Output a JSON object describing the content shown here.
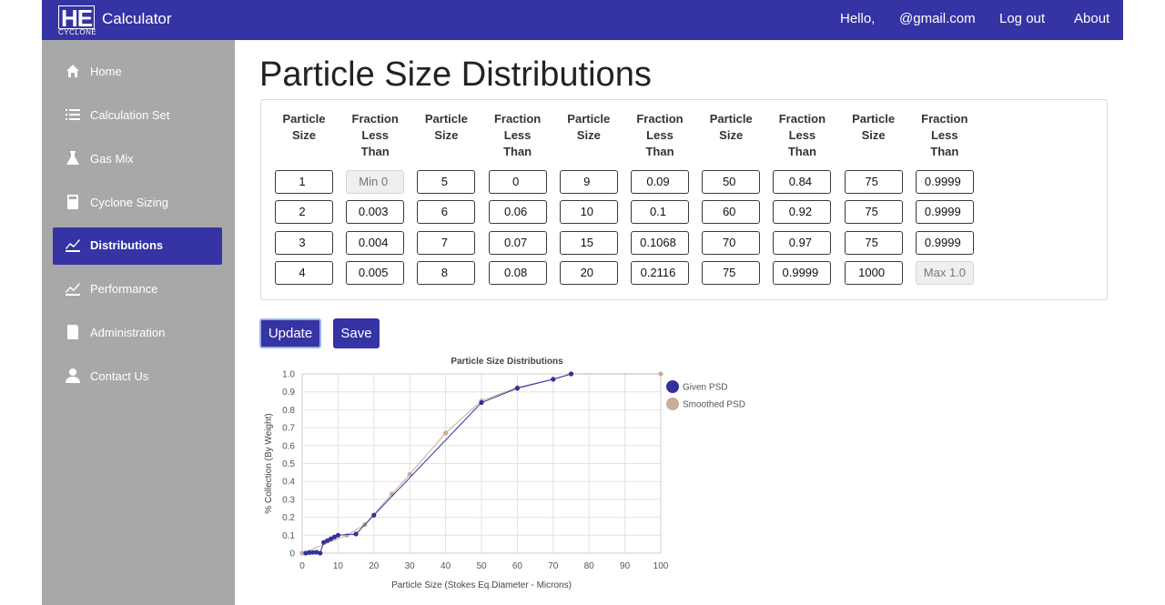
{
  "header": {
    "logo": "HE",
    "logo_sub": "CYCLONE",
    "app_name": "Calculator",
    "nav": [
      "Hello,",
      "@gmail.com",
      "Log out",
      "About"
    ]
  },
  "sidebar": {
    "items": [
      "Home",
      "Calculation Set",
      "Gas Mix",
      "Cyclone Sizing",
      "Distributions",
      "Performance",
      "Administration",
      "Contact Us"
    ],
    "active_index": 4
  },
  "page_title": "Particle Size Distributions",
  "table": {
    "headers": [
      "Particle Size",
      "Fraction Less Than",
      "Particle Size",
      "Fraction Less Than",
      "Particle Size",
      "Fraction Less Than",
      "Particle Size",
      "Fraction Less Than",
      "Particle Size",
      "Fraction Less Than"
    ],
    "rows": [
      [
        1,
        "Min 0",
        5,
        0,
        9,
        0.09,
        50,
        0.84,
        75,
        0.9999
      ],
      [
        2,
        0.003,
        6,
        0.06,
        10,
        0.1,
        60,
        0.92,
        75,
        0.9999
      ],
      [
        3,
        0.004,
        7,
        0.07,
        15,
        0.1068,
        70,
        0.97,
        75,
        0.9999
      ],
      [
        4,
        0.005,
        8,
        0.08,
        20,
        0.2116,
        75,
        0.9999,
        1000,
        "Max 1.0"
      ]
    ]
  },
  "buttons": [
    "Update",
    "Save"
  ],
  "chart_data": {
    "type": "line",
    "title": "Particle Size Distributions",
    "x_label": "Particle Size (Stokes Eq.Diameter - Microns)",
    "y_label": "% Collection (By Weight)",
    "xlim": [
      0,
      100
    ],
    "ylim": [
      0,
      1
    ],
    "xticks": [
      0,
      10,
      20,
      30,
      40,
      50,
      60,
      70,
      80,
      90,
      100
    ],
    "yticks": [
      0,
      0.1,
      0.2,
      0.3,
      0.4,
      0.5,
      0.6,
      0.7,
      0.8,
      0.9,
      {
        "value": 1,
        "label": "1.0"
      }
    ],
    "grid": true,
    "legend": "right",
    "series": [
      {
        "name": "Given PSD",
        "color": "#33309e",
        "x": [
          1,
          2,
          3,
          4,
          5,
          6,
          7,
          8,
          9,
          10,
          15,
          20,
          50,
          60,
          70,
          75
        ],
        "values": [
          0,
          0.003,
          0.004,
          0.005,
          0,
          0.06,
          0.07,
          0.08,
          0.09,
          0.1,
          0.1068,
          0.2116,
          0.84,
          0.92,
          0.97,
          0.9999
        ]
      },
      {
        "name": "Smoothed PSD",
        "color": "#c9ad99",
        "x": [
          0,
          12.5,
          17.5,
          25,
          30,
          40,
          50,
          60,
          70,
          75,
          100
        ],
        "values": [
          0,
          0.1,
          0.16,
          0.33,
          0.44,
          0.67,
          0.85,
          0.925,
          0.97,
          1,
          1
        ]
      }
    ]
  }
}
